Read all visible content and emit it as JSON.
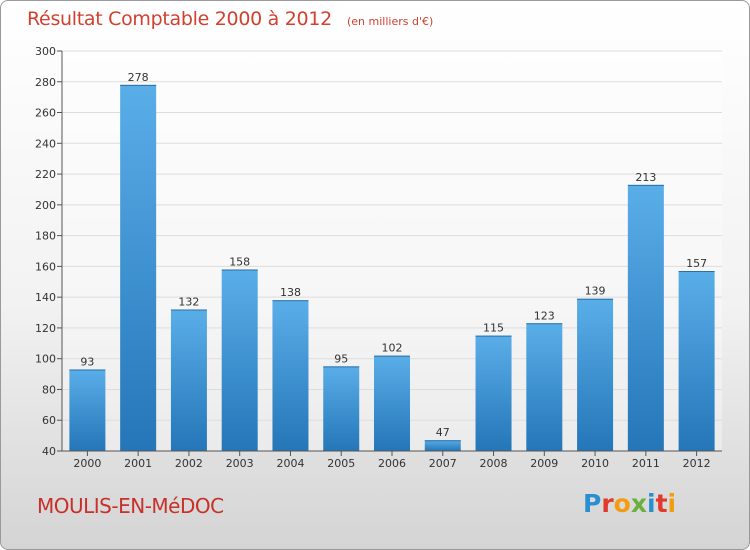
{
  "header": {
    "title": "Résultat Comptable 2000 à 2012",
    "subtitle": "(en milliers d'€)"
  },
  "footer": {
    "commune": "MOULIS-EN-MéDOC",
    "brand": "Proxiti",
    "brand_colors": [
      "#2a8fd0",
      "#e03a2f",
      "#f39c12",
      "#6ab03b",
      "#2a8fd0",
      "#e03a2f",
      "#f39c12"
    ]
  },
  "chart_data": {
    "type": "bar",
    "categories": [
      "2000",
      "2001",
      "2002",
      "2003",
      "2004",
      "2005",
      "2006",
      "2007",
      "2008",
      "2009",
      "2010",
      "2011",
      "2012"
    ],
    "values": [
      93,
      278,
      132,
      158,
      138,
      95,
      102,
      47,
      115,
      123,
      139,
      213,
      157
    ],
    "title": "Résultat Comptable 2000 à 2012",
    "ylim": [
      40,
      300
    ],
    "yticks": [
      40,
      60,
      80,
      100,
      120,
      140,
      160,
      180,
      200,
      220,
      240,
      260,
      280,
      300
    ],
    "grid": true,
    "bar_color": "#3d97d9",
    "value_labels": true
  }
}
